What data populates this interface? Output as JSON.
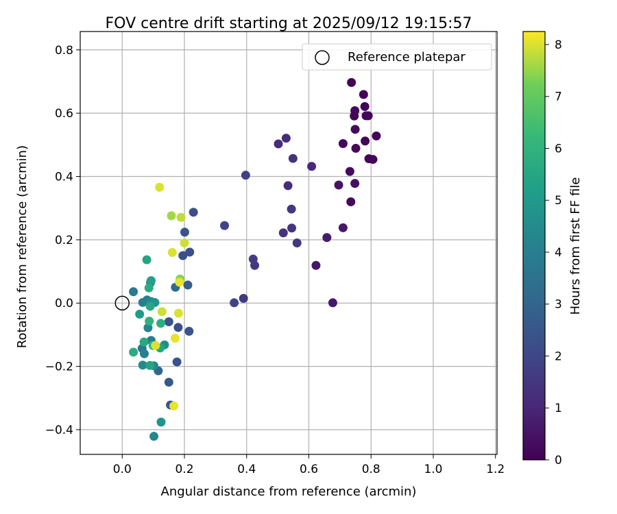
{
  "chart_data": {
    "type": "scatter",
    "title": "FOV centre drift starting at 2025/09/12 19:15:57",
    "xlabel": "Angular distance from reference (arcmin)",
    "ylabel": "Rotation from reference (arcmin)",
    "xlim": [
      -0.135,
      1.205
    ],
    "ylim": [
      -0.478,
      0.858
    ],
    "xticks": [
      "0.0",
      "0.2",
      "0.4",
      "0.6",
      "0.8",
      "1.0",
      "1.2"
    ],
    "xtick_values": [
      0,
      0.2,
      0.4,
      0.6,
      0.8,
      1.0,
      1.2
    ],
    "yticks": [
      "−0.4",
      "−0.2",
      "0.0",
      "0.2",
      "0.4",
      "0.6",
      "0.8"
    ],
    "ytick_values": [
      -0.4,
      -0.2,
      0,
      0.2,
      0.4,
      0.6,
      0.8
    ],
    "grid": true,
    "legend": {
      "position": "top-right",
      "entries": [
        {
          "label": "Reference platepar",
          "marker": "open-circle"
        }
      ]
    },
    "reference": {
      "x": 0,
      "y": 0
    },
    "colorbar": {
      "label": "Hours from first FF file",
      "range": [
        0,
        8.25
      ],
      "colormap": "viridis",
      "ticks": [
        "0",
        "1",
        "2",
        "3",
        "4",
        "5",
        "6",
        "7",
        "8"
      ],
      "tick_values": [
        0,
        1,
        2,
        3,
        4,
        5,
        6,
        7,
        8
      ]
    },
    "points": [
      {
        "x": 0.737,
        "y": 0.697,
        "h": 0.1
      },
      {
        "x": 0.776,
        "y": 0.659,
        "h": 0.1
      },
      {
        "x": 0.748,
        "y": 0.608,
        "h": 0.2
      },
      {
        "x": 0.78,
        "y": 0.621,
        "h": 0.1
      },
      {
        "x": 0.746,
        "y": 0.591,
        "h": 0.1
      },
      {
        "x": 0.784,
        "y": 0.592,
        "h": 0.1
      },
      {
        "x": 0.791,
        "y": 0.592,
        "h": 0.1
      },
      {
        "x": 0.749,
        "y": 0.549,
        "h": 0.2
      },
      {
        "x": 0.817,
        "y": 0.528,
        "h": 0.1
      },
      {
        "x": 0.781,
        "y": 0.512,
        "h": 0.1
      },
      {
        "x": 0.71,
        "y": 0.504,
        "h": 0.2
      },
      {
        "x": 0.751,
        "y": 0.489,
        "h": 0.2
      },
      {
        "x": 0.793,
        "y": 0.456,
        "h": 0.1
      },
      {
        "x": 0.806,
        "y": 0.454,
        "h": 0.1
      },
      {
        "x": 0.732,
        "y": 0.416,
        "h": 0.3
      },
      {
        "x": 0.748,
        "y": 0.378,
        "h": 0.4
      },
      {
        "x": 0.696,
        "y": 0.373,
        "h": 0.5
      },
      {
        "x": 0.735,
        "y": 0.32,
        "h": 0.2
      },
      {
        "x": 0.71,
        "y": 0.238,
        "h": 0.6
      },
      {
        "x": 0.658,
        "y": 0.207,
        "h": 0.7
      },
      {
        "x": 0.623,
        "y": 0.119,
        "h": 0.6
      },
      {
        "x": 0.677,
        "y": 0.001,
        "h": 0.6
      },
      {
        "x": 0.527,
        "y": 0.521,
        "h": 1.2
      },
      {
        "x": 0.502,
        "y": 0.503,
        "h": 1.2
      },
      {
        "x": 0.549,
        "y": 0.457,
        "h": 1.3
      },
      {
        "x": 0.609,
        "y": 0.432,
        "h": 1.1
      },
      {
        "x": 0.533,
        "y": 0.371,
        "h": 1.2
      },
      {
        "x": 0.544,
        "y": 0.297,
        "h": 1.5
      },
      {
        "x": 0.545,
        "y": 0.237,
        "h": 1.4
      },
      {
        "x": 0.518,
        "y": 0.222,
        "h": 1.3
      },
      {
        "x": 0.562,
        "y": 0.19,
        "h": 1.6
      },
      {
        "x": 0.397,
        "y": 0.404,
        "h": 1.8
      },
      {
        "x": 0.329,
        "y": 0.245,
        "h": 1.9
      },
      {
        "x": 0.421,
        "y": 0.139,
        "h": 1.7
      },
      {
        "x": 0.426,
        "y": 0.119,
        "h": 1.6
      },
      {
        "x": 0.39,
        "y": 0.015,
        "h": 1.6
      },
      {
        "x": 0.36,
        "y": 0.001,
        "h": 1.9
      },
      {
        "x": 0.229,
        "y": 0.287,
        "h": 2.2
      },
      {
        "x": 0.201,
        "y": 0.224,
        "h": 2.4
      },
      {
        "x": 0.217,
        "y": 0.161,
        "h": 2.3
      },
      {
        "x": 0.195,
        "y": 0.15,
        "h": 2.3
      },
      {
        "x": 0.211,
        "y": 0.057,
        "h": 2.7
      },
      {
        "x": 0.171,
        "y": 0.05,
        "h": 3.1
      },
      {
        "x": 0.15,
        "y": -0.059,
        "h": 2.4
      },
      {
        "x": 0.18,
        "y": -0.077,
        "h": 2.3
      },
      {
        "x": 0.215,
        "y": -0.089,
        "h": 2.4
      },
      {
        "x": 0.176,
        "y": -0.186,
        "h": 2.4
      },
      {
        "x": 0.15,
        "y": -0.25,
        "h": 2.6
      },
      {
        "x": 0.155,
        "y": -0.322,
        "h": 2.5
      },
      {
        "x": 0.116,
        "y": -0.214,
        "h": 3.0
      },
      {
        "x": 0.036,
        "y": 0.036,
        "h": 3.8
      },
      {
        "x": 0.091,
        "y": 0.065,
        "h": 3.6
      },
      {
        "x": 0.093,
        "y": 0.071,
        "h": 5.3
      },
      {
        "x": 0.066,
        "y": 0.002,
        "h": 4.0
      },
      {
        "x": 0.08,
        "y": 0.01,
        "h": 4.1
      },
      {
        "x": 0.093,
        "y": 0.005,
        "h": 4.4
      },
      {
        "x": 0.105,
        "y": 0.002,
        "h": 4.7
      },
      {
        "x": 0.083,
        "y": -0.078,
        "h": 4.2
      },
      {
        "x": 0.093,
        "y": -0.118,
        "h": 3.9
      },
      {
        "x": 0.064,
        "y": -0.143,
        "h": 3.8
      },
      {
        "x": 0.071,
        "y": -0.16,
        "h": 4.1
      },
      {
        "x": 0.066,
        "y": -0.196,
        "h": 4.4
      },
      {
        "x": 0.102,
        "y": -0.198,
        "h": 4.3
      },
      {
        "x": 0.089,
        "y": -0.197,
        "h": 5.4
      },
      {
        "x": 0.136,
        "y": -0.132,
        "h": 4.6
      },
      {
        "x": 0.102,
        "y": -0.421,
        "h": 4.3
      },
      {
        "x": 0.125,
        "y": -0.376,
        "h": 4.8
      },
      {
        "x": 0.079,
        "y": 0.137,
        "h": 5.4
      },
      {
        "x": 0.086,
        "y": 0.048,
        "h": 5.7
      },
      {
        "x": 0.056,
        "y": -0.035,
        "h": 5.1
      },
      {
        "x": 0.09,
        "y": -0.01,
        "h": 5.5
      },
      {
        "x": 0.087,
        "y": -0.057,
        "h": 5.9
      },
      {
        "x": 0.124,
        "y": -0.064,
        "h": 5.8
      },
      {
        "x": 0.07,
        "y": -0.123,
        "h": 5.6
      },
      {
        "x": 0.036,
        "y": -0.155,
        "h": 5.7
      },
      {
        "x": 0.099,
        "y": -0.134,
        "h": 6.2
      },
      {
        "x": 0.122,
        "y": -0.142,
        "h": 5.5
      },
      {
        "x": 0.12,
        "y": 0.366,
        "h": 8.0
      },
      {
        "x": 0.158,
        "y": 0.276,
        "h": 7.6
      },
      {
        "x": 0.189,
        "y": 0.271,
        "h": 7.8
      },
      {
        "x": 0.2,
        "y": 0.19,
        "h": 7.9
      },
      {
        "x": 0.161,
        "y": 0.16,
        "h": 8.0
      },
      {
        "x": 0.186,
        "y": 0.076,
        "h": 7.4
      },
      {
        "x": 0.184,
        "y": 0.066,
        "h": 8.1
      },
      {
        "x": 0.128,
        "y": -0.027,
        "h": 7.9
      },
      {
        "x": 0.181,
        "y": -0.032,
        "h": 8.0
      },
      {
        "x": 0.17,
        "y": -0.111,
        "h": 8.1
      },
      {
        "x": 0.107,
        "y": -0.134,
        "h": 8.0
      },
      {
        "x": 0.166,
        "y": -0.325,
        "h": 8.1
      }
    ]
  }
}
